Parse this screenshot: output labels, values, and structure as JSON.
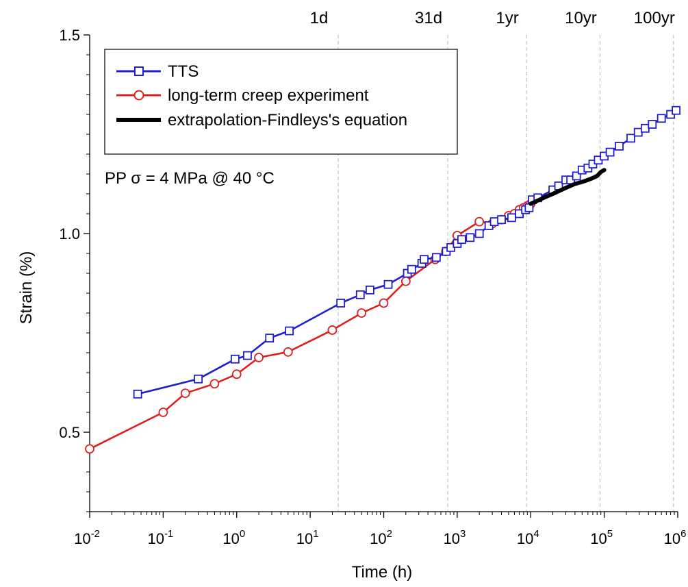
{
  "chart_data": {
    "type": "line",
    "xscale": "log",
    "xlim": [
      0.01,
      1000000
    ],
    "ylim": [
      0.3,
      1.5
    ],
    "xlabel": "Time (h)",
    "ylabel": "Strain (%)",
    "xticks": [
      {
        "value": 0.01,
        "base": "10",
        "exp": "-2"
      },
      {
        "value": 0.1,
        "base": "10",
        "exp": "-1"
      },
      {
        "value": 1,
        "base": "10",
        "exp": "0"
      },
      {
        "value": 10,
        "base": "10",
        "exp": "1"
      },
      {
        "value": 100,
        "base": "10",
        "exp": "2"
      },
      {
        "value": 1000,
        "base": "10",
        "exp": "3"
      },
      {
        "value": 10000,
        "base": "10",
        "exp": "4"
      },
      {
        "value": 100000,
        "base": "10",
        "exp": "5"
      },
      {
        "value": 1000000,
        "base": "10",
        "exp": "6"
      }
    ],
    "yticks": [
      {
        "value": 0.5,
        "label": "0.5"
      },
      {
        "value": 1.0,
        "label": "1.0"
      },
      {
        "value": 1.5,
        "label": "1.5"
      }
    ],
    "top_marks": [
      {
        "label": "1d",
        "x": 24
      },
      {
        "label": "31d",
        "x": 744
      },
      {
        "label": "1yr",
        "x": 8760
      },
      {
        "label": "10yr",
        "x": 87600
      },
      {
        "label": "100yr",
        "x": 876000
      }
    ],
    "annotation": "PP σ = 4 MPa @ 40 °C",
    "series": [
      {
        "name": "TTS",
        "color": "#1f1fcc",
        "marker": "square",
        "x": [
          0.045,
          0.3,
          0.95,
          1.4,
          2.8,
          5.2,
          26,
          48,
          65,
          115,
          210,
          240,
          330,
          355,
          520,
          710,
          820,
          1000,
          1150,
          1500,
          2000,
          2700,
          3200,
          4000,
          5500,
          7000,
          8500,
          9500,
          10500,
          12500,
          20000,
          24000,
          30000,
          35000,
          42000,
          50000,
          60000,
          70000,
          83000,
          100000,
          120000,
          160000,
          230000,
          290000,
          360000,
          450000,
          600000,
          800000,
          950000
        ],
        "y": [
          0.596,
          0.634,
          0.684,
          0.693,
          0.737,
          0.755,
          0.825,
          0.846,
          0.858,
          0.872,
          0.9,
          0.91,
          0.925,
          0.935,
          0.94,
          0.955,
          0.965,
          0.975,
          0.985,
          0.99,
          1.0,
          1.02,
          1.03,
          1.035,
          1.04,
          1.05,
          1.06,
          1.065,
          1.085,
          1.09,
          1.11,
          1.12,
          1.135,
          1.135,
          1.145,
          1.16,
          1.165,
          1.175,
          1.185,
          1.195,
          1.205,
          1.22,
          1.24,
          1.255,
          1.265,
          1.275,
          1.29,
          1.3,
          1.31
        ]
      },
      {
        "name": "long-term creep experiment",
        "color": "#dd1f1f",
        "marker": "circle",
        "x": [
          0.01,
          0.1,
          0.2,
          0.5,
          1.0,
          2.0,
          5.0,
          20,
          50,
          100,
          200,
          500,
          700,
          1000,
          2000,
          3000,
          4000,
          5000,
          6000,
          7000,
          8000,
          9000,
          10000
        ],
        "y": [
          0.458,
          0.55,
          0.598,
          0.622,
          0.646,
          0.688,
          0.702,
          0.757,
          0.8,
          0.825,
          0.88,
          0.935,
          0.955,
          0.995,
          1.03,
          1.025,
          1.035,
          1.045,
          1.05,
          1.06,
          1.065,
          1.07,
          1.075
        ]
      },
      {
        "name": "extrapolation-Findleys's equation",
        "color": "#000000",
        "marker": "none",
        "x": [
          10000,
          15000,
          20000,
          30000,
          40000,
          50000,
          60000,
          70000,
          80000,
          90000,
          100000
        ],
        "y": [
          1.075,
          1.09,
          1.1,
          1.115,
          1.125,
          1.13,
          1.135,
          1.14,
          1.145,
          1.155,
          1.16
        ]
      }
    ]
  }
}
